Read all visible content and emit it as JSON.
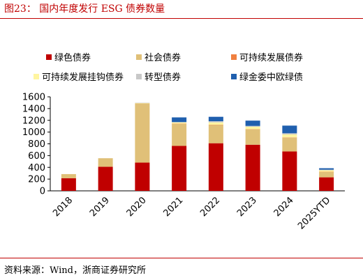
{
  "header": {
    "title": "图23：  国内年度发行 ESG 债券数量"
  },
  "footer": {
    "source": "资料来源：Wind，浙商证券研究所"
  },
  "chart_data": {
    "type": "bar",
    "stacked": true,
    "title": "",
    "xlabel": "",
    "ylabel": "",
    "ylim": [
      0,
      1600
    ],
    "yticks": [
      0,
      200,
      400,
      600,
      800,
      1000,
      1200,
      1400,
      1600
    ],
    "grid": false,
    "legend_position": "top",
    "categories": [
      "2018",
      "2019",
      "2020",
      "2021",
      "2022",
      "2023",
      "2024",
      "2025YTD"
    ],
    "series": [
      {
        "name": "绿色债券",
        "color": "#c00000",
        "values": [
          215,
          410,
          480,
          765,
          810,
          785,
          670,
          230
        ]
      },
      {
        "name": "社会债券",
        "color": "#e0c078",
        "values": [
          70,
          145,
          1010,
          375,
          310,
          260,
          235,
          90
        ]
      },
      {
        "name": "可持续发展债券",
        "color": "#f08040",
        "values": [
          0,
          0,
          0,
          5,
          5,
          5,
          5,
          5
        ]
      },
      {
        "name": "可持续发展挂钩债券",
        "color": "#fff5a0",
        "values": [
          0,
          0,
          5,
          20,
          40,
          40,
          50,
          25
        ]
      },
      {
        "name": "转型债券",
        "color": "#c8c8c8",
        "values": [
          0,
          0,
          5,
          5,
          20,
          15,
          20,
          10
        ]
      },
      {
        "name": "绿金委中欧绿债",
        "color": "#1f5fae",
        "values": [
          0,
          0,
          0,
          80,
          75,
          90,
          130,
          25
        ]
      }
    ]
  }
}
